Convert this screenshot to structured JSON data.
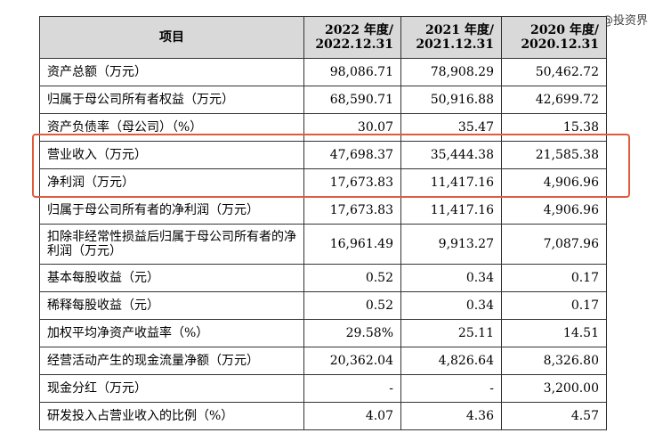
{
  "watermark": "@投资界",
  "table": {
    "header": {
      "item": "项目",
      "col1_line1": "2022 年度/",
      "col1_line2": "2022.12.31",
      "col2_line1": "2021 年度/",
      "col2_line2": "2021.12.31",
      "col3_line1": "2020 年度/",
      "col3_line2": "2020.12.31"
    },
    "rows": [
      {
        "label": "资产总额（万元）",
        "v2022": "98,086.71",
        "v2021": "78,908.29",
        "v2020": "50,462.72"
      },
      {
        "label": "归属于母公司所有者权益（万元）",
        "v2022": "68,590.71",
        "v2021": "50,916.88",
        "v2020": "42,699.72"
      },
      {
        "label": "资产负债率（母公司）（%）",
        "v2022": "30.07",
        "v2021": "35.47",
        "v2020": "15.38"
      },
      {
        "label": "营业收入（万元）",
        "v2022": "47,698.37",
        "v2021": "35,444.38",
        "v2020": "21,585.38"
      },
      {
        "label": "净利润（万元）",
        "v2022": "17,673.83",
        "v2021": "11,417.16",
        "v2020": "4,906.96"
      },
      {
        "label": "归属于母公司所有者的净利润（万元）",
        "v2022": "17,673.83",
        "v2021": "11,417.16",
        "v2020": "4,906.96"
      },
      {
        "label": "扣除非经常性损益后归属于母公司所有者的净利润（万元）",
        "v2022": "16,961.49",
        "v2021": "9,913.27",
        "v2020": "7,087.96"
      },
      {
        "label": "基本每股收益（元）",
        "v2022": "0.52",
        "v2021": "0.34",
        "v2020": "0.17"
      },
      {
        "label": "稀释每股收益（元）",
        "v2022": "0.52",
        "v2021": "0.34",
        "v2020": "0.17"
      },
      {
        "label": "加权平均净资产收益率（%）",
        "v2022": "29.58%",
        "v2021": "25.11",
        "v2020": "14.51"
      },
      {
        "label": "经营活动产生的现金流量净额（万元）",
        "v2022": "20,362.04",
        "v2021": "4,826.64",
        "v2020": "8,326.80"
      },
      {
        "label": "现金分红（万元）",
        "v2022": "-",
        "v2021": "-",
        "v2020": "3,200.00"
      },
      {
        "label": "研发投入占营业收入的比例（%）",
        "v2022": "4.07",
        "v2021": "4.36",
        "v2020": "4.57"
      }
    ]
  },
  "highlight_color": "#e05a3c"
}
